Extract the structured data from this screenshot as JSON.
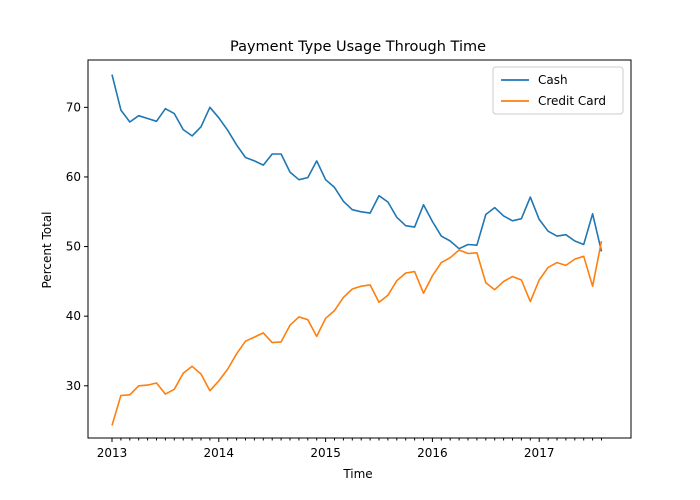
{
  "chart_data": {
    "type": "line",
    "title": "Payment Type Usage Through Time",
    "xlabel": "Time",
    "ylabel": "Percent Total",
    "x": [
      "2013-01",
      "2013-02",
      "2013-03",
      "2013-04",
      "2013-05",
      "2013-06",
      "2013-07",
      "2013-08",
      "2013-09",
      "2013-10",
      "2013-11",
      "2013-12",
      "2014-01",
      "2014-02",
      "2014-03",
      "2014-04",
      "2014-05",
      "2014-06",
      "2014-07",
      "2014-08",
      "2014-09",
      "2014-10",
      "2014-11",
      "2014-12",
      "2015-01",
      "2015-02",
      "2015-03",
      "2015-04",
      "2015-05",
      "2015-06",
      "2015-07",
      "2015-08",
      "2015-09",
      "2015-10",
      "2015-11",
      "2015-12",
      "2016-01",
      "2016-02",
      "2016-03",
      "2016-04",
      "2016-05",
      "2016-06",
      "2016-07",
      "2016-08",
      "2016-09",
      "2016-10",
      "2016-11",
      "2016-12",
      "2017-01",
      "2017-02",
      "2017-03",
      "2017-04",
      "2017-05",
      "2017-06",
      "2017-07",
      "2017-08"
    ],
    "x_ticks": [
      "2013",
      "2014",
      "2015",
      "2016",
      "2017"
    ],
    "ylim": [
      22.5,
      76.8
    ],
    "y_ticks": [
      30,
      40,
      50,
      60,
      70
    ],
    "grid": false,
    "legend_position": "top-right",
    "series": [
      {
        "name": "Cash",
        "color": "#1f77b4",
        "values": [
          74.7,
          69.6,
          67.9,
          68.8,
          68.4,
          68.0,
          69.8,
          69.1,
          66.8,
          65.9,
          67.2,
          70.0,
          68.5,
          66.7,
          64.6,
          62.8,
          62.3,
          61.7,
          63.3,
          63.3,
          60.7,
          59.6,
          59.9,
          62.3,
          59.6,
          58.5,
          56.5,
          55.3,
          55.0,
          54.8,
          57.3,
          56.4,
          54.2,
          53.0,
          52.8,
          56.0,
          53.6,
          51.5,
          50.8,
          49.7,
          50.3,
          50.2,
          54.6,
          55.6,
          54.4,
          53.7,
          54.0,
          57.1,
          53.9,
          52.2,
          51.5,
          51.7,
          50.8,
          50.3,
          54.7,
          49.3
        ]
      },
      {
        "name": "Credit Card",
        "color": "#ff7f0e",
        "values": [
          24.3,
          28.6,
          28.7,
          30.0,
          30.1,
          30.4,
          28.8,
          29.5,
          31.8,
          32.8,
          31.7,
          29.3,
          30.7,
          32.4,
          34.6,
          36.4,
          37.0,
          37.6,
          36.2,
          36.3,
          38.7,
          39.9,
          39.5,
          37.1,
          39.7,
          40.8,
          42.7,
          43.9,
          44.3,
          44.5,
          42.0,
          43.0,
          45.1,
          46.2,
          46.4,
          43.3,
          45.8,
          47.7,
          48.4,
          49.5,
          49.0,
          49.1,
          44.8,
          43.8,
          45.0,
          45.7,
          45.2,
          42.1,
          45.2,
          47.0,
          47.7,
          47.3,
          48.2,
          48.6,
          44.3,
          50.8
        ]
      }
    ]
  }
}
